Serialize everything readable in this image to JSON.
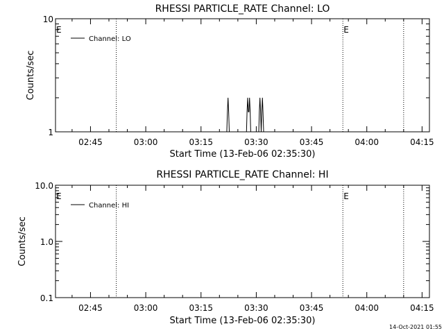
{
  "chart_data": [
    {
      "type": "line",
      "title": "RHESSI PARTICLE_RATE Channel: LO",
      "xlabel": "Start Time (13-Feb-06 02:35:30)",
      "ylabel": "Counts/sec",
      "yscale": "log",
      "xlim": [
        "02:35:30",
        "04:17:00"
      ],
      "ylim": [
        1,
        10
      ],
      "x_ticks": [
        "02:45",
        "03:00",
        "03:15",
        "03:30",
        "03:45",
        "04:00",
        "04:15"
      ],
      "y_ticks": [
        "1",
        "10"
      ],
      "legend_position": "top-left",
      "series": [
        {
          "name": "Channel: LO",
          "color": "#000000",
          "points": [
            [
              "03:22:00",
              1
            ],
            [
              "03:22:10",
              1.5
            ],
            [
              "03:22:20",
              2
            ],
            [
              "03:22:30",
              1.5
            ],
            [
              "03:22:40",
              1
            ],
            [
              "03:27:20",
              1
            ],
            [
              "03:27:30",
              1.5
            ],
            [
              "03:27:40",
              2
            ],
            [
              "03:27:50",
              1.5
            ],
            [
              "03:28:00",
              1.5
            ],
            [
              "03:28:10",
              2
            ],
            [
              "03:28:20",
              1.5
            ],
            [
              "03:28:30",
              1
            ],
            [
              "03:30:40",
              1
            ],
            [
              "03:30:50",
              1.5
            ],
            [
              "03:31:00",
              2
            ],
            [
              "03:31:10",
              1.5
            ],
            [
              "03:31:20",
              1
            ],
            [
              "03:31:30",
              1.5
            ],
            [
              "03:31:40",
              2
            ],
            [
              "03:31:50",
              1.5
            ],
            [
              "03:32:00",
              1
            ]
          ]
        }
      ],
      "vertical_markers": [
        {
          "x": "02:52:00",
          "label": ""
        },
        {
          "x": "03:53:30",
          "label": "E"
        },
        {
          "x": "04:10:00",
          "label": ""
        }
      ],
      "corner_label": "E"
    },
    {
      "type": "line",
      "title": "RHESSI PARTICLE_RATE Channel: HI",
      "xlabel": "Start Time (13-Feb-06 02:35:30)",
      "ylabel": "Counts/sec",
      "yscale": "log",
      "xlim": [
        "02:35:30",
        "04:17:00"
      ],
      "ylim": [
        0.1,
        10
      ],
      "x_ticks": [
        "02:45",
        "03:00",
        "03:15",
        "03:30",
        "03:45",
        "04:00",
        "04:15"
      ],
      "y_ticks": [
        "0.1",
        "1.0",
        "10.0"
      ],
      "legend_position": "top-left",
      "series": [
        {
          "name": "Channel: HI",
          "color": "#000000",
          "points": []
        }
      ],
      "vertical_markers": [
        {
          "x": "02:52:00",
          "label": ""
        },
        {
          "x": "03:53:30",
          "label": "E"
        },
        {
          "x": "04:10:00",
          "label": ""
        }
      ],
      "corner_label": "E"
    }
  ],
  "footer": {
    "timestamp": "14-Oct-2021 01:55"
  }
}
